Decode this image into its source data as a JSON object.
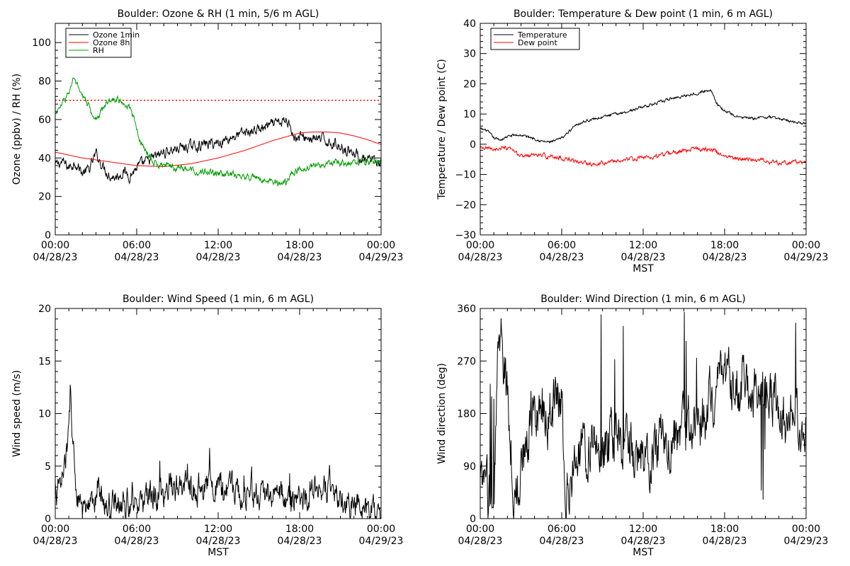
{
  "colors": {
    "background": "#ffffff",
    "axes": "#000000",
    "ozone_1min": "#000000",
    "ozone_8h": "#ff0000",
    "rh": "#00a000",
    "temperature": "#000000",
    "dew_point": "#ff0000",
    "wind_speed": "#000000",
    "wind_direction": "#000000"
  },
  "chart_data": [
    {
      "type": "line",
      "title": "Boulder: Ozone & RH (1 min, 5/6 m AGL)",
      "ylabel": "Ozone (ppbv) / RH (%)",
      "xlabel": "",
      "xlim": [
        0,
        24
      ],
      "ylim": [
        0,
        110
      ],
      "yticks": [
        0,
        20,
        40,
        60,
        80,
        100
      ],
      "yticklabels": [
        "0",
        "20",
        "40",
        "60",
        "80",
        "100"
      ],
      "xticks": [
        0,
        6,
        12,
        18,
        24
      ],
      "xticklabels": [
        [
          "00:00",
          "04/28/23"
        ],
        [
          "06:00",
          "04/28/23"
        ],
        [
          "12:00",
          "04/28/23"
        ],
        [
          "18:00",
          "04/28/23"
        ],
        [
          "00:00",
          "04/29/23"
        ]
      ],
      "legend": {
        "position": "top-left",
        "entries": [
          "Ozone 1min",
          "Ozone 8h",
          "RH"
        ]
      },
      "hline": {
        "y": 70,
        "style": "dotted",
        "color": "#ff0000"
      },
      "series": [
        {
          "name": "Ozone 1min",
          "color": "#000000",
          "noise": 2.2,
          "x": [
            0,
            0.5,
            1,
            1.5,
            2,
            2.5,
            3,
            3.5,
            4,
            4.5,
            5,
            5.5,
            6,
            6.5,
            7,
            7.5,
            8,
            9,
            10,
            11,
            12,
            13,
            14,
            15,
            16,
            17,
            17.3,
            17.6,
            18,
            19,
            20,
            21,
            22,
            22.5,
            23,
            23.5,
            24
          ],
          "y": [
            36,
            38,
            35,
            38,
            32,
            34,
            42,
            36,
            31,
            30,
            33,
            31,
            35,
            37,
            39,
            41,
            43,
            45,
            46,
            47,
            48,
            51,
            53,
            55,
            57,
            59,
            59,
            50,
            51,
            50,
            49,
            46,
            43,
            40,
            38,
            38,
            37
          ]
        },
        {
          "name": "Ozone 8h",
          "color": "#ff0000",
          "noise": 0,
          "x": [
            0,
            2,
            4,
            6,
            8,
            10,
            12,
            14,
            16,
            18,
            19,
            20,
            21,
            22,
            23,
            24
          ],
          "y": [
            43,
            40,
            38,
            36,
            35.5,
            37,
            40,
            44,
            49,
            53,
            53.5,
            53.5,
            53,
            51.5,
            49.5,
            47
          ]
        },
        {
          "name": "RH",
          "color": "#00a000",
          "noise": 1.4,
          "x": [
            0,
            0.5,
            1,
            1.3,
            1.6,
            2,
            2.5,
            2.8,
            3.2,
            3.6,
            4,
            4.5,
            5,
            5.4,
            5.8,
            6.2,
            6.6,
            7,
            7.5,
            8,
            9,
            10,
            11,
            12,
            13,
            14,
            15,
            16,
            16.6,
            17,
            17.5,
            18,
            19,
            20,
            21,
            22,
            23,
            24
          ],
          "y": [
            63,
            68,
            74,
            80,
            78,
            72,
            67,
            60,
            62,
            67,
            70,
            71,
            69,
            67,
            60,
            50,
            44,
            40,
            37,
            36,
            35,
            34,
            33,
            32,
            31,
            30,
            29,
            28,
            26,
            27,
            32,
            34,
            36,
            37,
            38,
            38,
            38,
            38
          ]
        }
      ]
    },
    {
      "type": "line",
      "title": "Boulder: Temperature & Dew point (1 min, 6 m AGL)",
      "ylabel": "Temperature / Dew point (C)",
      "xlabel": "MST",
      "xlim": [
        0,
        24
      ],
      "ylim": [
        -30,
        40
      ],
      "yticks": [
        -30,
        -20,
        -10,
        0,
        10,
        20,
        30,
        40
      ],
      "yticklabels": [
        "−30",
        "−20",
        "−10",
        "0",
        "10",
        "20",
        "30",
        "40"
      ],
      "xticks": [
        0,
        6,
        12,
        18,
        24
      ],
      "xticklabels": [
        [
          "00:00",
          "04/28/23"
        ],
        [
          "06:00",
          "04/28/23"
        ],
        [
          "12:00",
          "04/28/23"
        ],
        [
          "18:00",
          "04/28/23"
        ],
        [
          "00:00",
          "04/29/23"
        ]
      ],
      "legend": {
        "position": "top-left",
        "entries": [
          "Temperature",
          "Dew point"
        ]
      },
      "series": [
        {
          "name": "Temperature",
          "color": "#000000",
          "noise": 0.35,
          "x": [
            0,
            0.5,
            1,
            1.5,
            2,
            2.5,
            3,
            3.5,
            4,
            4.5,
            5,
            5.5,
            6,
            6.5,
            7,
            8,
            9,
            10,
            11,
            12,
            13,
            14,
            15,
            16,
            16.5,
            17,
            17.5,
            18,
            18.5,
            19,
            20,
            21,
            22,
            23,
            24
          ],
          "y": [
            5,
            4.5,
            2,
            1.5,
            2.5,
            3,
            3,
            2.5,
            2,
            1,
            0.7,
            1,
            2,
            4,
            6.5,
            8,
            9,
            10,
            11,
            12.5,
            13.5,
            15,
            16,
            17,
            17.5,
            18,
            13,
            11,
            10,
            9,
            8.5,
            9,
            8.5,
            7.5,
            7
          ]
        },
        {
          "name": "Dew point",
          "color": "#ff0000",
          "noise": 0.55,
          "x": [
            0,
            1,
            2,
            2.5,
            3,
            4,
            5,
            6,
            6.5,
            7,
            8,
            9,
            10,
            11,
            12,
            13,
            14,
            15,
            16,
            17,
            17.5,
            18,
            19,
            20,
            21,
            22,
            23,
            24
          ],
          "y": [
            -1.5,
            -1.5,
            -1.5,
            -2.5,
            -4,
            -3.5,
            -4,
            -4.5,
            -5,
            -5.5,
            -6.5,
            -6,
            -5.5,
            -5,
            -4.5,
            -4,
            -3,
            -2,
            -1.5,
            -1.5,
            -3,
            -3.5,
            -5,
            -5,
            -5.5,
            -6,
            -6,
            -6
          ]
        }
      ]
    },
    {
      "type": "line",
      "title": "Boulder: Wind Speed (1 min, 6 m AGL)",
      "ylabel": "Wind speed (m/s)",
      "xlabel": "MST",
      "xlim": [
        0,
        24
      ],
      "ylim": [
        0,
        20
      ],
      "yticks": [
        0,
        5,
        10,
        15,
        20
      ],
      "yticklabels": [
        "0",
        "5",
        "10",
        "15",
        "20"
      ],
      "xticks": [
        0,
        6,
        12,
        18,
        24
      ],
      "xticklabels": [
        [
          "00:00",
          "04/28/23"
        ],
        [
          "06:00",
          "04/28/23"
        ],
        [
          "12:00",
          "04/28/23"
        ],
        [
          "18:00",
          "04/28/23"
        ],
        [
          "00:00",
          "04/29/23"
        ]
      ],
      "series": [
        {
          "name": "",
          "color": "#000000",
          "noise": 1.1,
          "x": [
            0,
            0.3,
            0.6,
            0.8,
            1,
            1.1,
            1.3,
            1.6,
            2,
            2.5,
            2.9,
            3.1,
            3.5,
            4,
            5,
            6,
            7,
            8,
            9,
            10,
            11,
            12,
            13,
            14,
            15,
            16,
            17,
            18,
            19,
            20,
            21,
            22,
            23,
            24
          ],
          "y": [
            3,
            2.5,
            4,
            6,
            8,
            12,
            8,
            1.5,
            0.6,
            0.5,
            1.5,
            3,
            1.5,
            1.5,
            1.5,
            1.5,
            2,
            2.5,
            2.8,
            3,
            3,
            3,
            2.8,
            2.5,
            2.3,
            2.2,
            2,
            2.2,
            2.4,
            2.5,
            2,
            1.2,
            1,
            1
          ]
        }
      ]
    },
    {
      "type": "line",
      "title": "Boulder: Wind Direction (1 min, 6 m AGL)",
      "ylabel": "Wind direction (deg)",
      "xlabel": "MST",
      "xlim": [
        0,
        24
      ],
      "ylim": [
        0,
        360
      ],
      "yticks": [
        0,
        90,
        180,
        270,
        360
      ],
      "yticklabels": [
        "0",
        "90",
        "180",
        "270",
        "360"
      ],
      "xticks": [
        0,
        6,
        12,
        18,
        24
      ],
      "xticklabels": [
        [
          "00:00",
          "04/28/23"
        ],
        [
          "06:00",
          "04/28/23"
        ],
        [
          "12:00",
          "04/28/23"
        ],
        [
          "18:00",
          "04/28/23"
        ],
        [
          "00:00",
          "04/29/23"
        ]
      ],
      "series": [
        {
          "name": "",
          "color": "#000000",
          "noise": 40,
          "x": [
            0,
            0.5,
            1,
            1.3,
            1.6,
            2,
            2.4,
            2.8,
            3.2,
            3.6,
            4,
            4.5,
            5,
            5.5,
            6,
            6.3,
            6.6,
            7,
            7.5,
            8,
            9,
            10,
            11,
            12,
            13,
            14,
            15,
            16,
            16.5,
            17,
            17.5,
            18,
            19,
            20,
            21,
            22,
            23,
            24
          ],
          "y": [
            50,
            40,
            30,
            290,
            300,
            200,
            80,
            40,
            100,
            170,
            200,
            190,
            180,
            200,
            190,
            60,
            70,
            100,
            110,
            120,
            110,
            130,
            120,
            110,
            120,
            140,
            150,
            160,
            170,
            200,
            210,
            220,
            225,
            225,
            220,
            190,
            170,
            160
          ]
        }
      ]
    }
  ]
}
